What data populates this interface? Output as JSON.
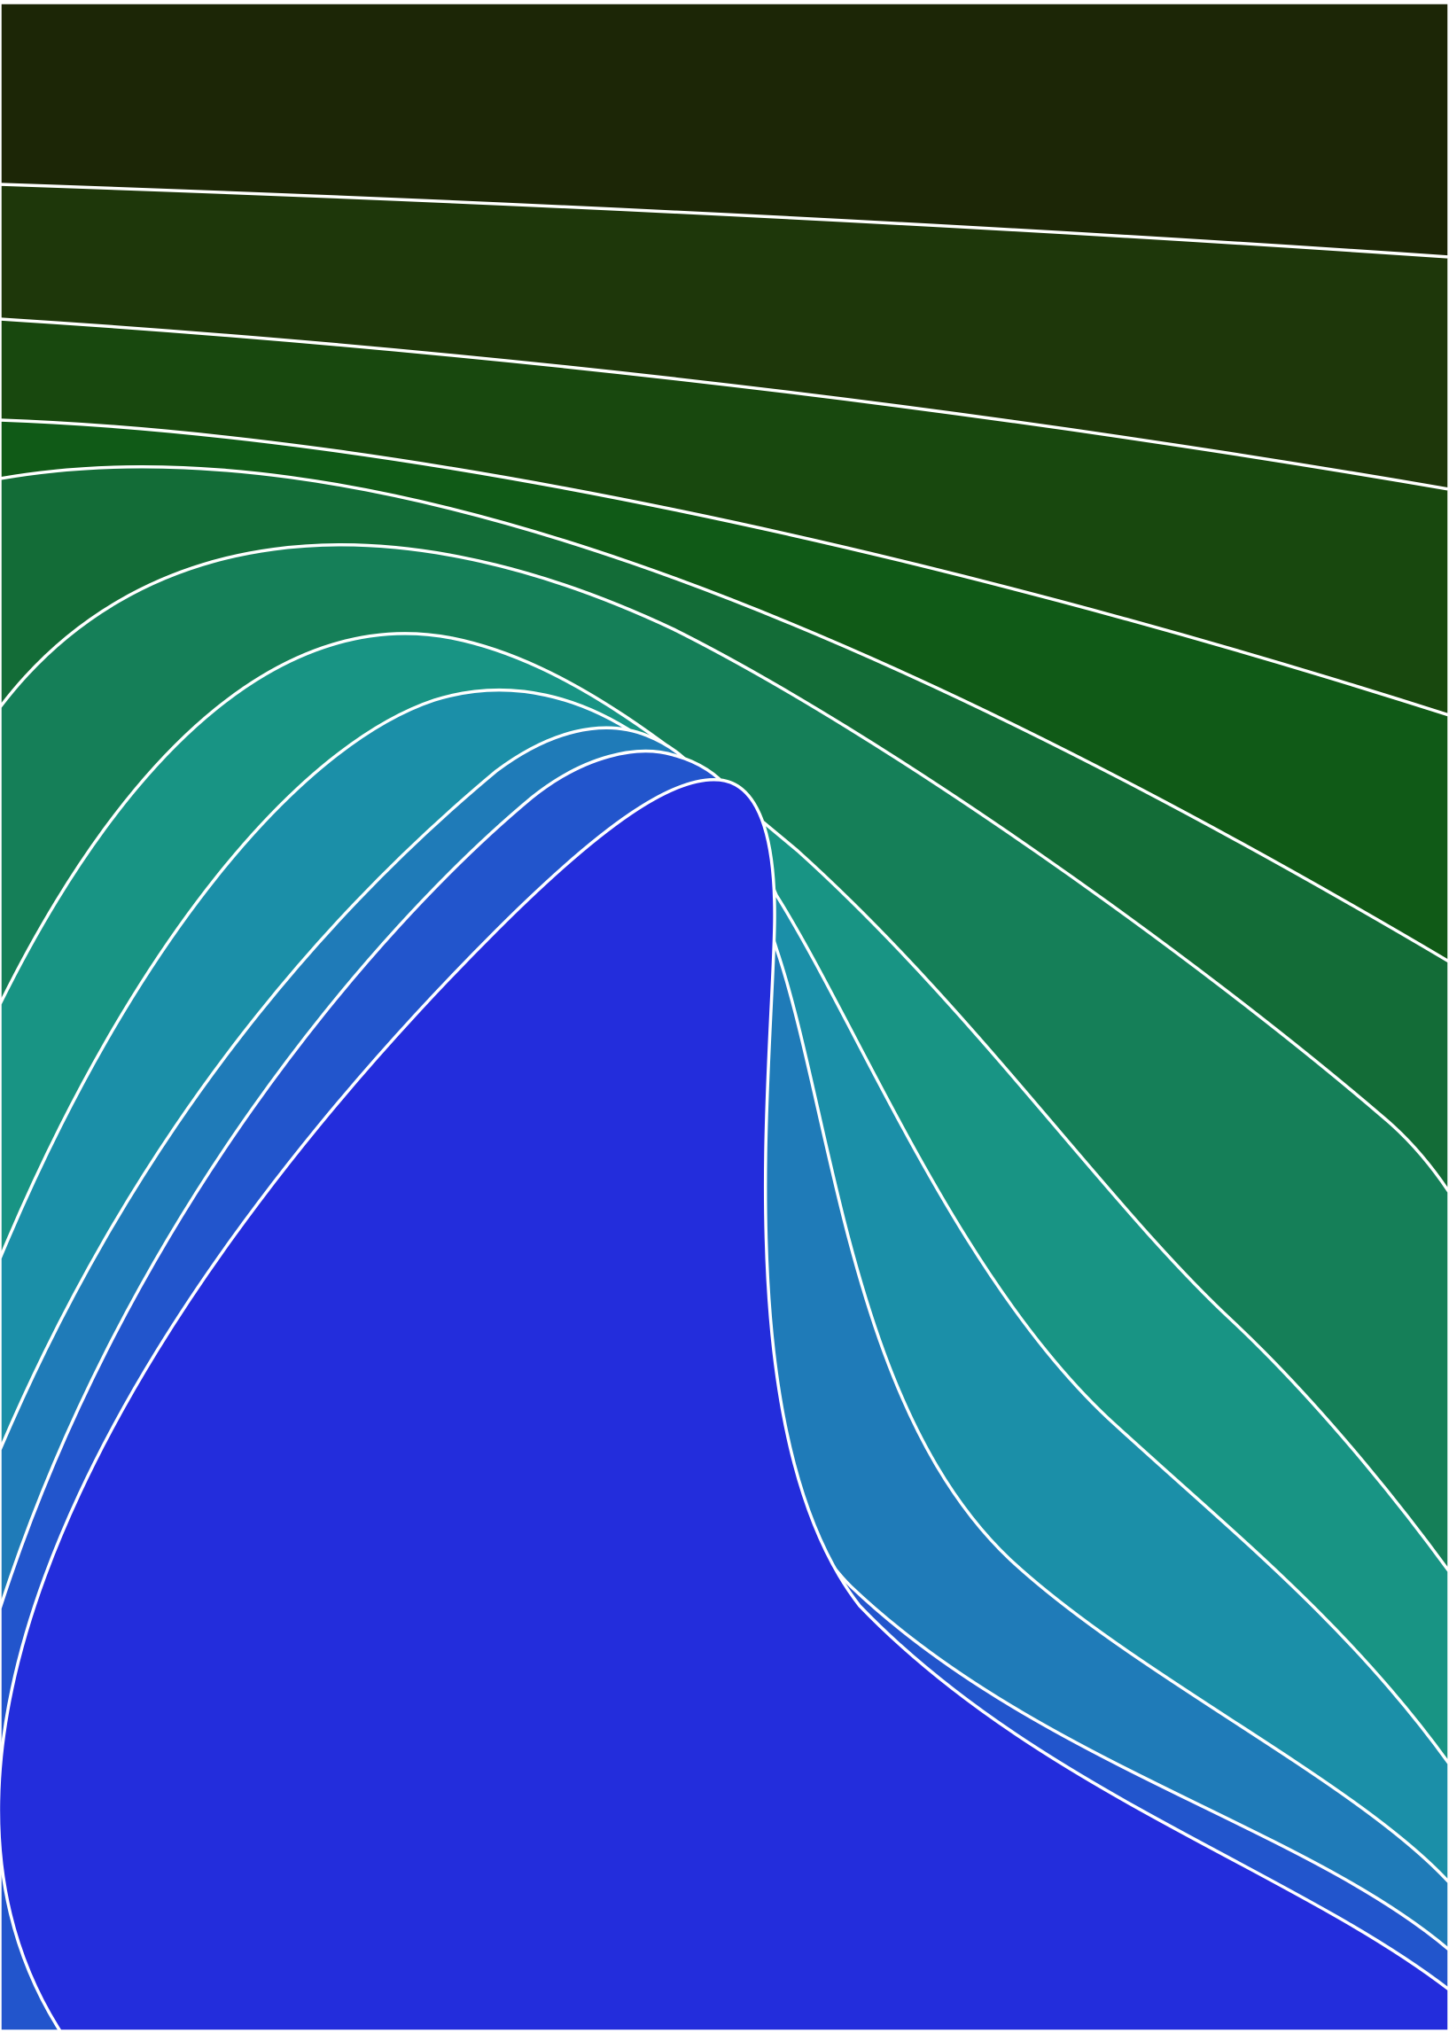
{
  "artwork": {
    "style": "layered contour bands (abstract)",
    "outline_color": "#ffffff",
    "frame_color": "#ffffff",
    "bands": [
      {
        "name": "band-1",
        "color": "#1c2606"
      },
      {
        "name": "band-2",
        "color": "#1e370a"
      },
      {
        "name": "band-3",
        "color": "#18480e"
      },
      {
        "name": "band-4",
        "color": "#105a17"
      },
      {
        "name": "band-5",
        "color": "#136c37"
      },
      {
        "name": "band-6",
        "color": "#157f58"
      },
      {
        "name": "band-7",
        "color": "#189484"
      },
      {
        "name": "band-8",
        "color": "#1b8fa8"
      },
      {
        "name": "band-9",
        "color": "#1f7bb8"
      },
      {
        "name": "band-10",
        "color": "#2255cc"
      },
      {
        "name": "band-11",
        "color": "#232ddc"
      }
    ]
  }
}
